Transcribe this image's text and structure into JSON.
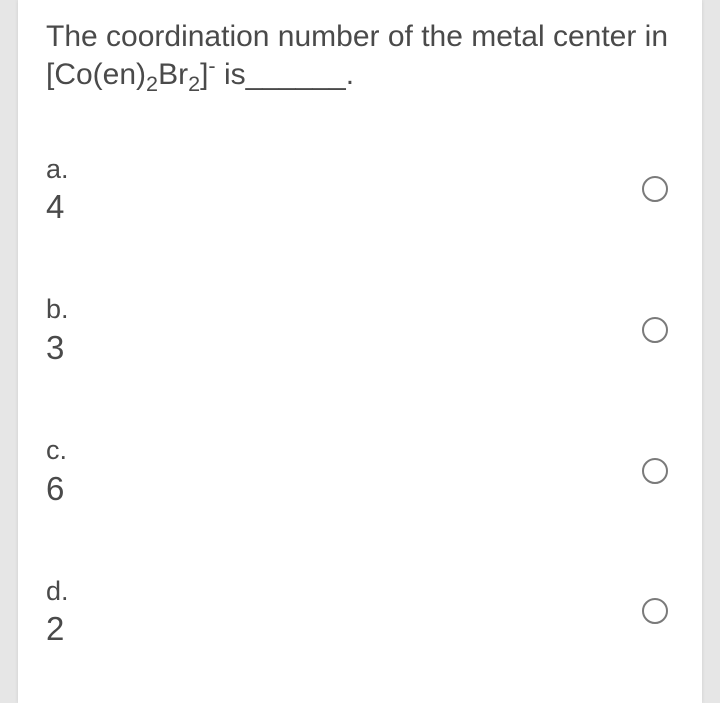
{
  "question": {
    "pre": "The coordination number of the metal center in [Co(en)",
    "sub1": "2",
    "mid": "Br",
    "sub2": "2",
    "close": "]",
    "super": "-",
    "after": " is______."
  },
  "options": [
    {
      "letter": "a.",
      "value": "4"
    },
    {
      "letter": "b.",
      "value": "3"
    },
    {
      "letter": "c.",
      "value": "6"
    },
    {
      "letter": "d.",
      "value": "2"
    }
  ],
  "colors": {
    "page_bg": "#e6e6e6",
    "card_bg": "#ffffff",
    "text": "#4a4a4a",
    "radio_border": "#7a7a7a"
  }
}
